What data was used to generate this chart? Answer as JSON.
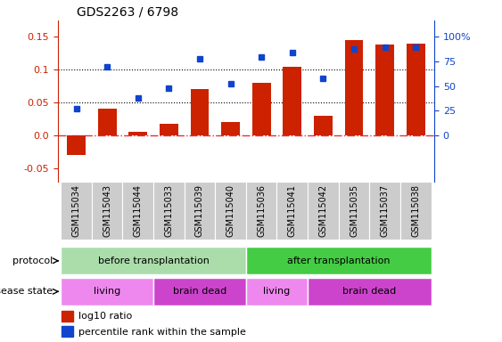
{
  "title": "GDS2263 / 6798",
  "samples": [
    "GSM115034",
    "GSM115043",
    "GSM115044",
    "GSM115033",
    "GSM115039",
    "GSM115040",
    "GSM115036",
    "GSM115041",
    "GSM115042",
    "GSM115035",
    "GSM115037",
    "GSM115038"
  ],
  "log10_ratio": [
    -0.03,
    0.04,
    0.005,
    0.017,
    0.07,
    0.02,
    0.08,
    0.105,
    0.03,
    0.145,
    0.138,
    0.14
  ],
  "percentile_rank_pct": [
    27,
    70,
    38,
    48,
    78,
    52,
    80,
    84,
    58,
    88,
    90,
    90
  ],
  "ylim": [
    -0.07,
    0.175
  ],
  "yticks_left": [
    -0.05,
    0.0,
    0.05,
    0.1,
    0.15
  ],
  "yticks_right_pct": [
    0,
    25,
    50,
    75,
    100
  ],
  "bar_color": "#cc2200",
  "dot_color": "#1144cc",
  "zero_line_color": "#dd3333",
  "living_color": "#ee88ee",
  "brain_dead_color": "#cc44cc",
  "before_color": "#aaddaa",
  "after_color": "#44cc44",
  "gray_color": "#cccccc",
  "protocol_spans": [
    [
      0,
      5,
      "before transplantation"
    ],
    [
      6,
      11,
      "after transplantation"
    ]
  ],
  "disease_spans": [
    [
      0,
      2,
      "living"
    ],
    [
      3,
      5,
      "brain dead"
    ],
    [
      6,
      7,
      "living"
    ],
    [
      8,
      11,
      "brain dead"
    ]
  ]
}
